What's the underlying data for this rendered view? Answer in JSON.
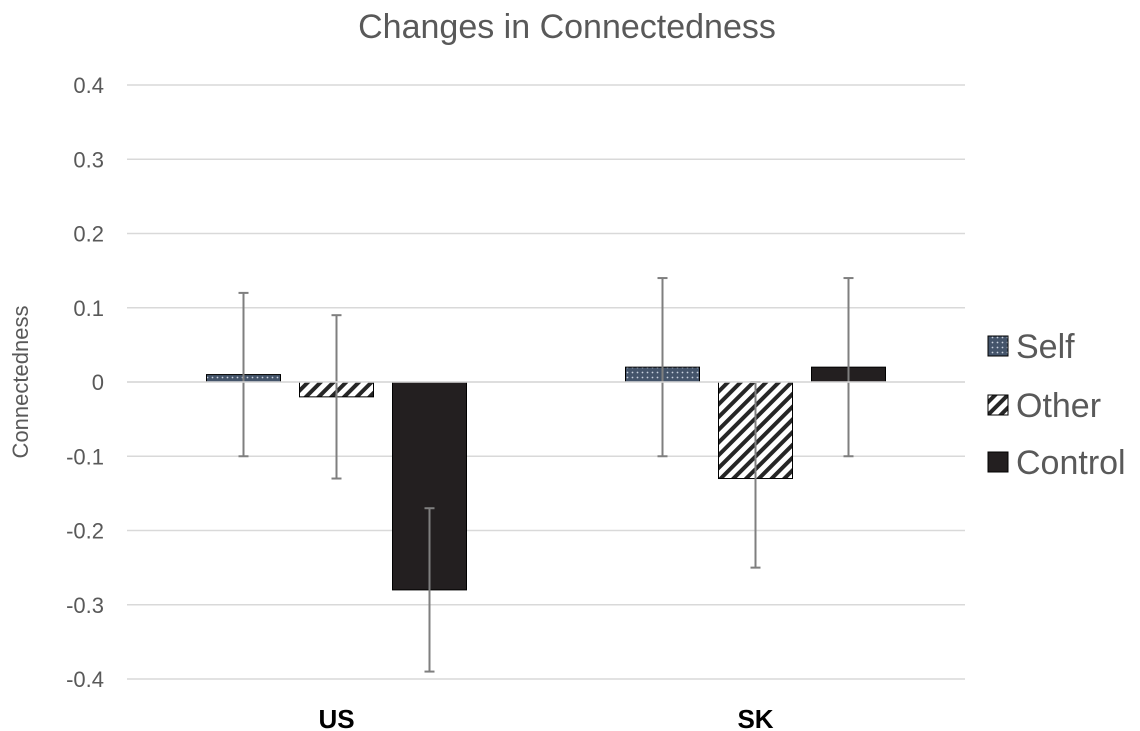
{
  "chart_data": {
    "type": "bar",
    "title": "Changes in Connectedness",
    "xlabel": "",
    "ylabel": "Connectedness",
    "categories": [
      "US",
      "SK"
    ],
    "ylim": [
      -0.4,
      0.4
    ],
    "yticks": [
      -0.4,
      -0.3,
      -0.2,
      -0.1,
      0,
      0.1,
      0.2,
      0.3,
      0.4
    ],
    "ytick_labels": [
      "-0.4",
      "-0.3",
      "-0.2",
      "-0.1",
      "0",
      "0.1",
      "0.2",
      "0.3",
      "0.4"
    ],
    "grid": true,
    "legend_position": "right",
    "series": [
      {
        "name": "Self",
        "pattern": "dotted",
        "color": "#44546a",
        "values": [
          0.01,
          0.02
        ],
        "error_low": [
          -0.1,
          -0.1
        ],
        "error_high": [
          0.12,
          0.14
        ]
      },
      {
        "name": "Other",
        "pattern": "diagonal-stripes",
        "color": "#262626",
        "values": [
          -0.02,
          -0.13
        ],
        "error_low": [
          -0.13,
          -0.25
        ],
        "error_high": [
          0.09,
          0.0
        ]
      },
      {
        "name": "Control",
        "pattern": "solid",
        "color": "#231f20",
        "values": [
          -0.28,
          0.02
        ],
        "error_low": [
          -0.39,
          -0.1
        ],
        "error_high": [
          -0.17,
          0.14
        ]
      }
    ]
  }
}
